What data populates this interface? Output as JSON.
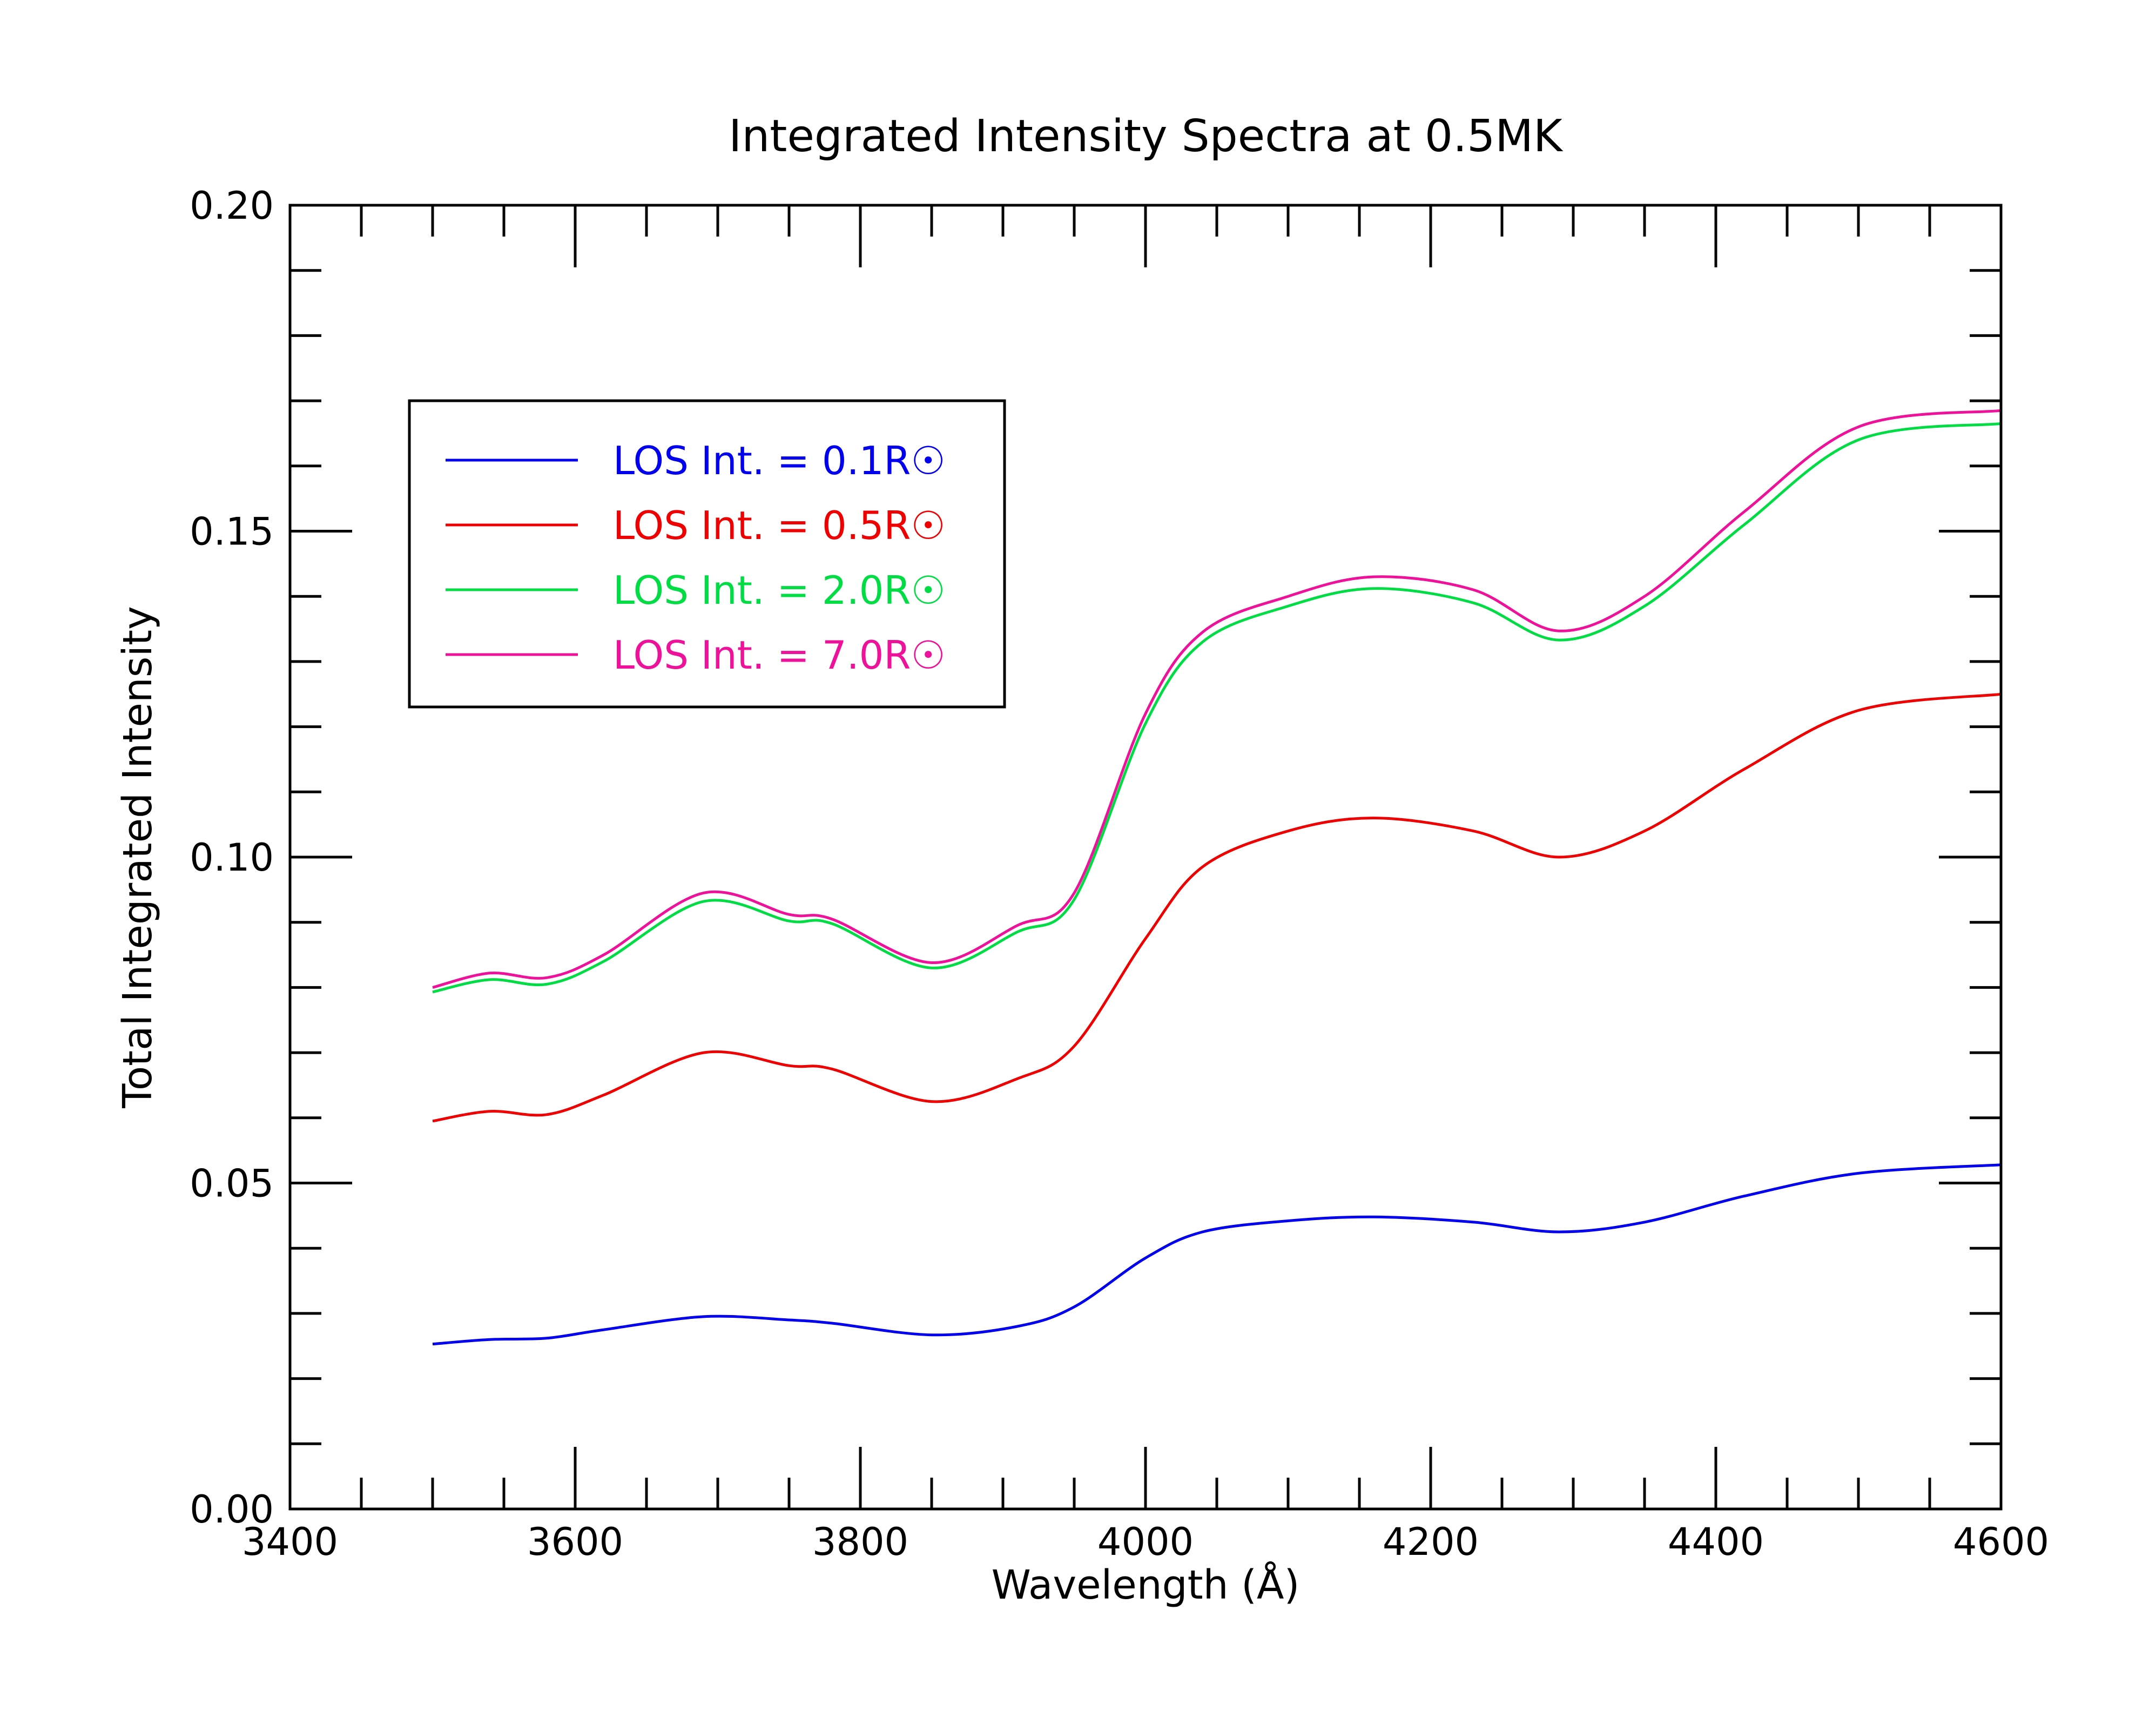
{
  "chart_data": {
    "type": "line",
    "title": "Integrated Intensity Spectra at 0.5MK",
    "xlabel": "Wavelength (Å)",
    "ylabel": "Total Integrated Intensity",
    "xlim": [
      3400,
      4600
    ],
    "ylim": [
      0.0,
      0.2
    ],
    "x_ticks": [
      3400,
      3600,
      3800,
      4000,
      4200,
      4400,
      4600
    ],
    "y_ticks": [
      0.0,
      0.05,
      0.1,
      0.15,
      0.2
    ],
    "x_tick_labels": [
      "3400",
      "3600",
      "3800",
      "4000",
      "4200",
      "4400",
      "4600"
    ],
    "y_tick_labels": [
      "0.00",
      "0.05",
      "0.10",
      "0.15",
      "0.20"
    ],
    "x_minor_step": 50,
    "y_minor_step": 0.01,
    "grid": false,
    "legend_position": "upper-left",
    "x": [
      3500,
      3540,
      3580,
      3620,
      3690,
      3750,
      3780,
      3850,
      3910,
      3950,
      4000,
      4040,
      4100,
      4160,
      4230,
      4290,
      4350,
      4420,
      4500,
      4600
    ],
    "series": [
      {
        "name": "LOS Int. = 0.1R☉",
        "color": "#0000ee",
        "values": [
          0.0253,
          0.026,
          0.0262,
          0.0275,
          0.0295,
          0.029,
          0.0285,
          0.0267,
          0.028,
          0.031,
          0.0385,
          0.0425,
          0.0442,
          0.0448,
          0.044,
          0.0425,
          0.044,
          0.048,
          0.0515,
          0.0528
        ]
      },
      {
        "name": "LOS Int. = 0.5R☉",
        "color": "#ee0000",
        "values": [
          0.0595,
          0.061,
          0.0605,
          0.0635,
          0.07,
          0.068,
          0.0675,
          0.0625,
          0.066,
          0.071,
          0.0875,
          0.0985,
          0.104,
          0.106,
          0.104,
          0.1,
          0.104,
          0.1135,
          0.1225,
          0.125
        ]
      },
      {
        "name": "LOS Int. = 2.0R☉",
        "color": "#00dd44",
        "values": [
          0.0793,
          0.0812,
          0.0805,
          0.084,
          0.0932,
          0.0902,
          0.0898,
          0.083,
          0.0885,
          0.0935,
          0.1205,
          0.133,
          0.1385,
          0.1412,
          0.139,
          0.1333,
          0.1385,
          0.151,
          0.164,
          0.1665
        ]
      },
      {
        "name": "LOS Int. = 7.0R☉",
        "color": "#ee1199",
        "values": [
          0.08,
          0.0822,
          0.0815,
          0.085,
          0.0945,
          0.0912,
          0.0905,
          0.0838,
          0.0895,
          0.0945,
          0.122,
          0.1345,
          0.14,
          0.143,
          0.141,
          0.1347,
          0.14,
          0.153,
          0.166,
          0.1685
        ]
      }
    ]
  }
}
